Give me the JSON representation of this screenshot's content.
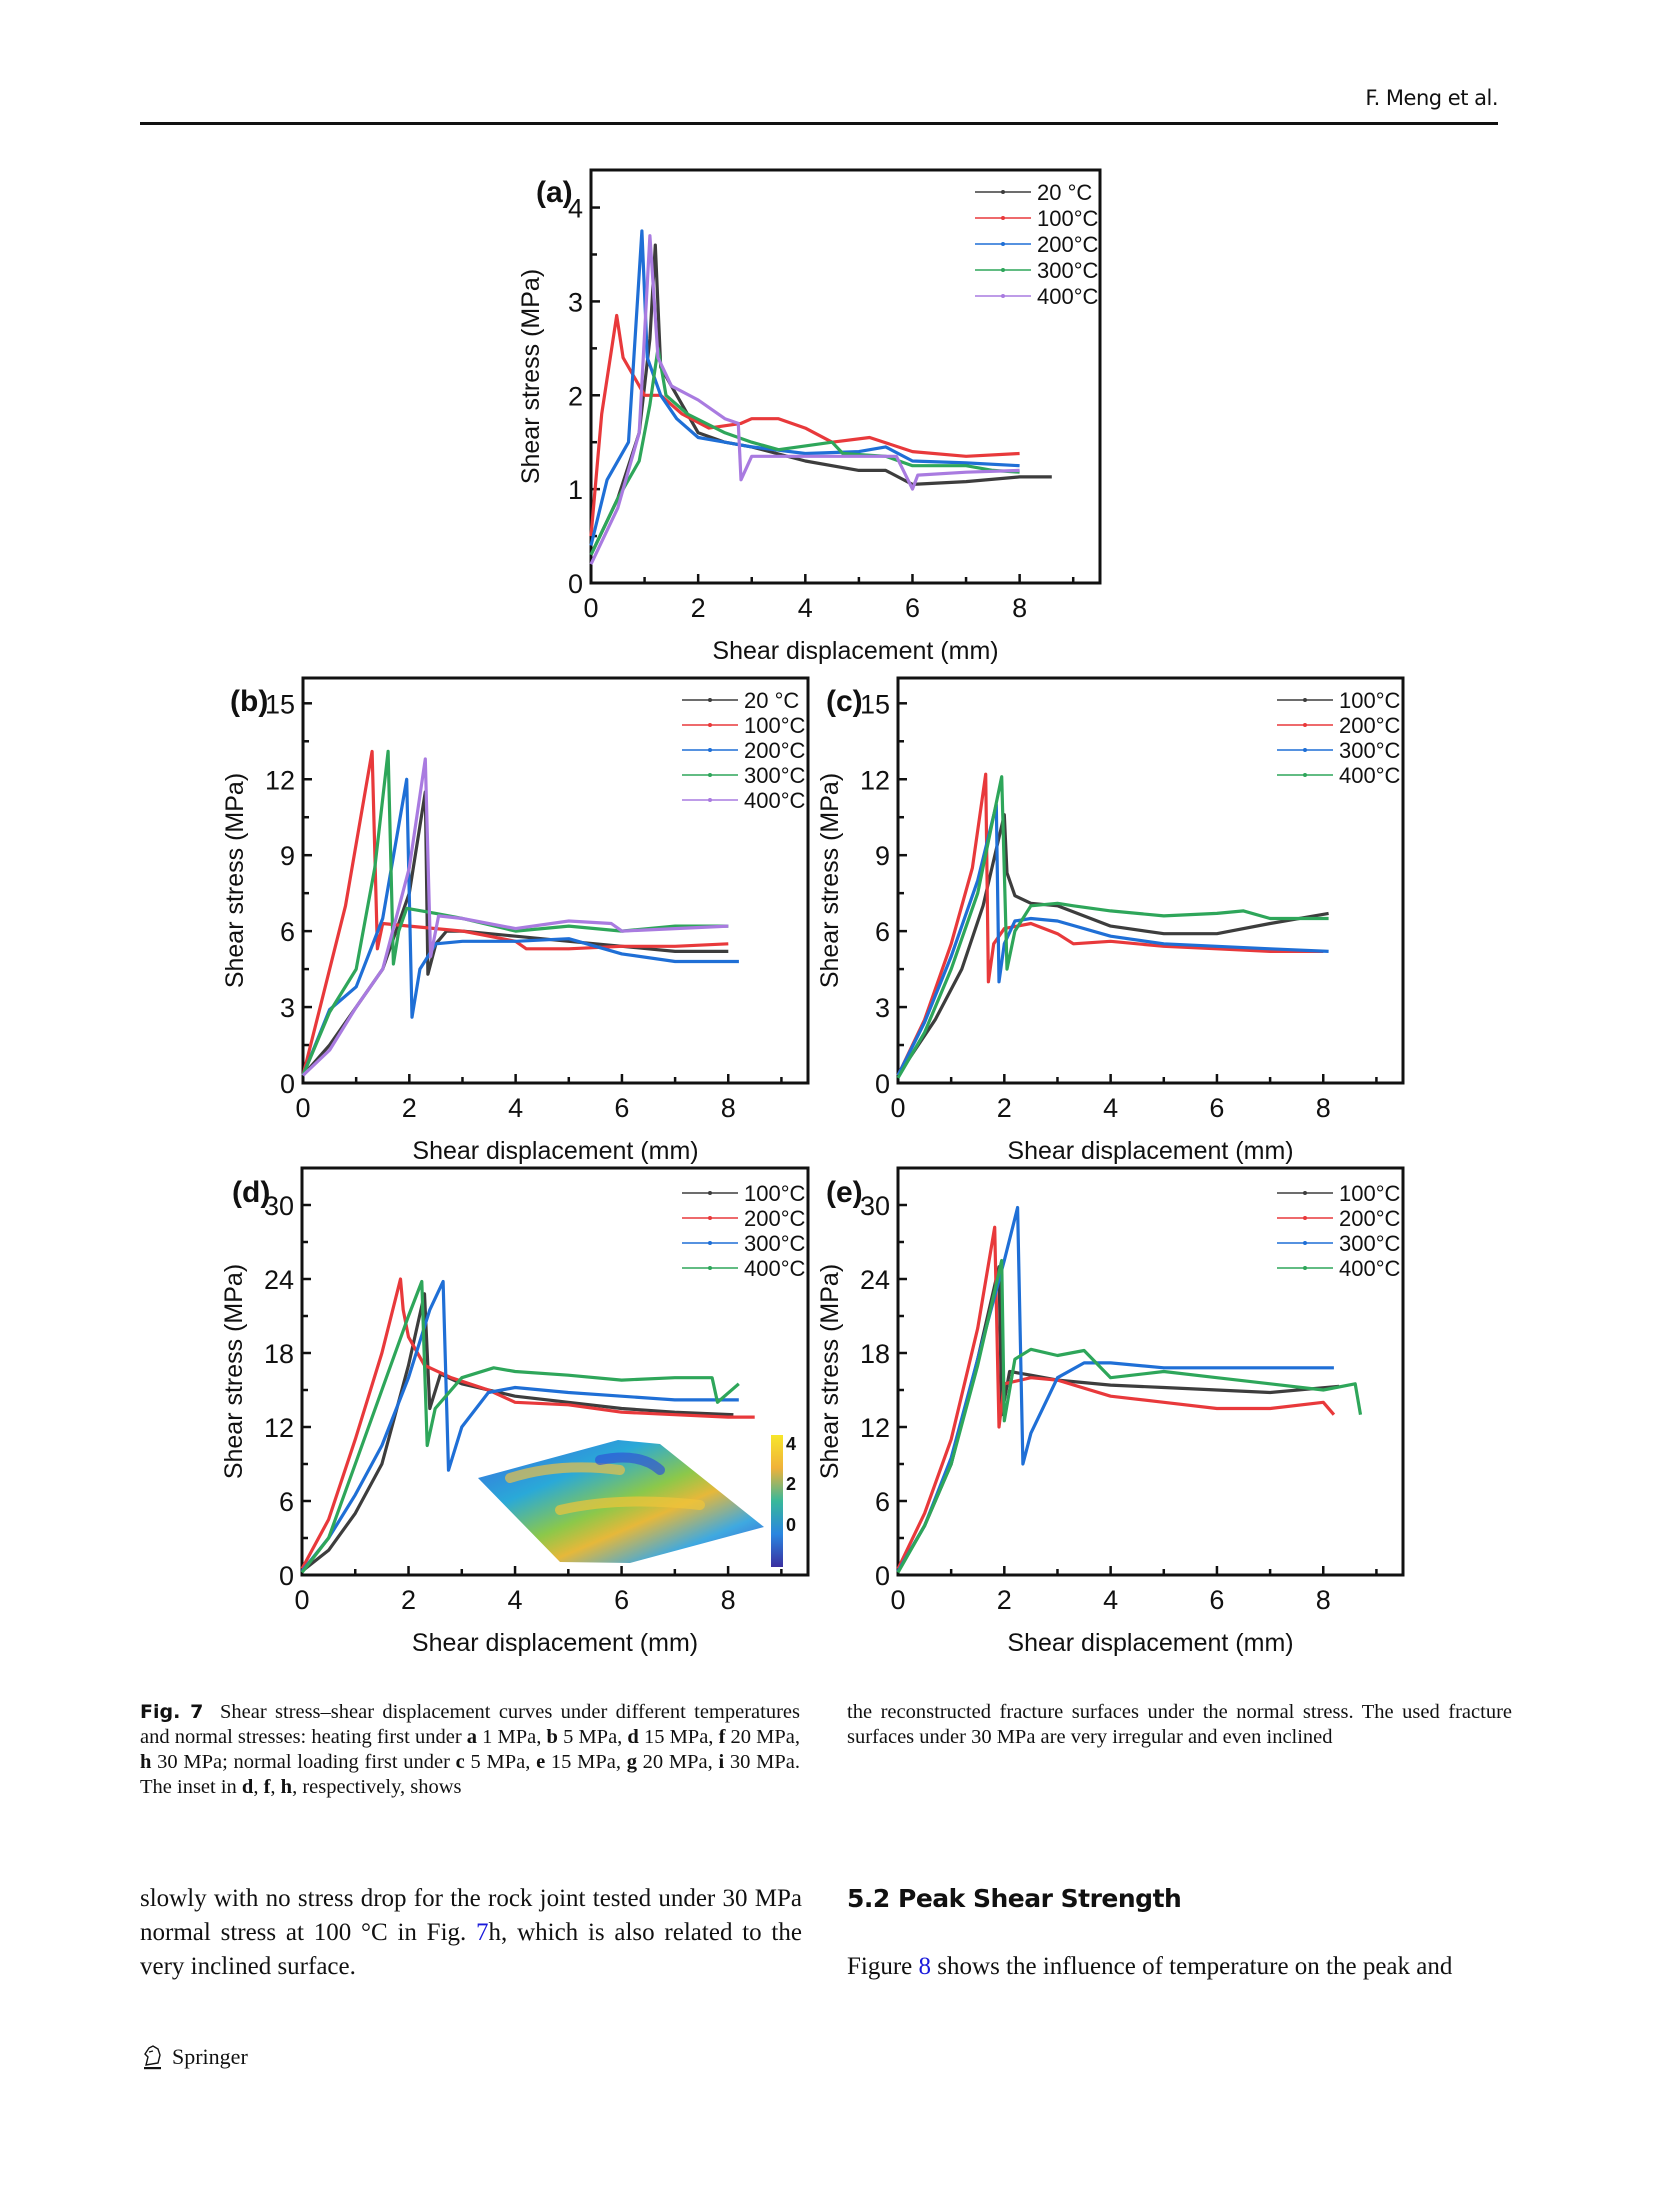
{
  "header": {
    "running_head": "F. Meng et al."
  },
  "figure": {
    "caption_label": "Fig. 7",
    "caption_left": [
      {
        "t": "Shear stress–shear displacement curves under different temper­atures and normal stresses: heating first under "
      },
      {
        "b": "a"
      },
      {
        "t": " 1 MPa, "
      },
      {
        "b": "b"
      },
      {
        "t": " 5 MPa, "
      },
      {
        "b": "d"
      },
      {
        "t": " 15 MPa, "
      },
      {
        "b": "f"
      },
      {
        "t": " 20 MPa, "
      },
      {
        "b": "h"
      },
      {
        "t": " 30 MPa; normal loading first under "
      },
      {
        "b": "c"
      },
      {
        "t": " 5 MPa, "
      },
      {
        "b": "e"
      },
      {
        "t": " 15 MPa, "
      },
      {
        "b": "g"
      },
      {
        "t": " 20 MPa, "
      },
      {
        "b": "i"
      },
      {
        "t": " 30 MPa. The inset in "
      },
      {
        "b": "d"
      },
      {
        "t": ", "
      },
      {
        "b": "f"
      },
      {
        "t": ", "
      },
      {
        "b": "h"
      },
      {
        "t": ", respectively, shows"
      }
    ],
    "caption_right": "the reconstructed fracture surfaces under the normal stress. The used fracture surfaces under 30 MPa are very irregular and even inclined",
    "inset": {
      "colorbar_ticks": [
        "4",
        "2",
        "0"
      ]
    }
  },
  "body": {
    "left_para": {
      "pre": "slowly with no stress drop for the rock joint tested under 30 MPa normal stress at 100 °C in Fig. ",
      "link": "7",
      "post": "h, which is also related to the very inclined surface."
    },
    "section_heading": "5.2  Peak Shear Strength",
    "right_para": {
      "pre": "Figure ",
      "link": "8",
      "post": " shows the influence of temperature on the peak and"
    }
  },
  "footer": {
    "publisher": "Springer"
  },
  "colors": {
    "20C": "#3d3d3d",
    "100C_a": "#e8393b",
    "200C_a": "#1f6fd6",
    "300C_a": "#2ea65a",
    "400C_a": "#a97be0"
  },
  "chart_data": [
    {
      "panel": "(a)",
      "type": "line",
      "xlabel": "Shear displacement (mm)",
      "ylabel": "Shear stress (MPa)",
      "xlim": [
        0,
        9.5
      ],
      "ylim": [
        0,
        4.4
      ],
      "xticks": [
        0,
        2,
        4,
        6,
        8
      ],
      "yticks": [
        0,
        1,
        2,
        3,
        4
      ],
      "legend": "top-right",
      "series": [
        {
          "name": "20 °C",
          "color": "#3d3d3d",
          "x": [
            0,
            0.5,
            0.9,
            1.1,
            1.2,
            1.3,
            1.5,
            2,
            2.5,
            3,
            4,
            5,
            5.5,
            6,
            7,
            8,
            8.6
          ],
          "y": [
            0.3,
            0.9,
            1.6,
            2.6,
            3.6,
            2.3,
            2.1,
            1.6,
            1.5,
            1.45,
            1.3,
            1.2,
            1.2,
            1.05,
            1.08,
            1.13,
            1.13
          ]
        },
        {
          "name": "100°C",
          "color": "#e8393b",
          "x": [
            0,
            0.2,
            0.48,
            0.6,
            0.8,
            1.0,
            1.3,
            1.7,
            2.2,
            2.8,
            3.0,
            3.5,
            4.0,
            4.5,
            5.2,
            6,
            7,
            8
          ],
          "y": [
            0.5,
            1.8,
            2.85,
            2.4,
            2.2,
            2.0,
            2.0,
            1.8,
            1.65,
            1.7,
            1.75,
            1.75,
            1.65,
            1.5,
            1.55,
            1.4,
            1.35,
            1.38
          ]
        },
        {
          "name": "200°C",
          "color": "#1f6fd6",
          "x": [
            0,
            0.3,
            0.7,
            0.95,
            1.05,
            1.3,
            1.6,
            2,
            2.5,
            3,
            4,
            5,
            5.5,
            6,
            7,
            8
          ],
          "y": [
            0.4,
            1.1,
            1.5,
            3.75,
            2.4,
            2.0,
            1.75,
            1.55,
            1.5,
            1.45,
            1.38,
            1.4,
            1.45,
            1.3,
            1.28,
            1.25
          ]
        },
        {
          "name": "300°C",
          "color": "#2ea65a",
          "x": [
            0,
            0.5,
            0.9,
            1.1,
            1.25,
            1.4,
            1.8,
            2.5,
            3,
            3.5,
            4.5,
            4.7,
            5.5,
            6,
            7,
            7.5,
            8
          ],
          "y": [
            0.3,
            0.9,
            1.3,
            1.9,
            2.5,
            2.0,
            1.8,
            1.6,
            1.5,
            1.42,
            1.5,
            1.38,
            1.35,
            1.25,
            1.25,
            1.2,
            1.18
          ]
        },
        {
          "name": "400°C",
          "color": "#a97be0",
          "x": [
            0,
            0.5,
            0.9,
            1.1,
            1.25,
            1.5,
            2,
            2.5,
            2.75,
            2.8,
            3,
            4,
            5,
            5.7,
            6.0,
            6.1,
            7,
            8
          ],
          "y": [
            0.2,
            0.8,
            1.6,
            3.7,
            2.4,
            2.1,
            1.95,
            1.75,
            1.7,
            1.1,
            1.35,
            1.35,
            1.35,
            1.35,
            1.0,
            1.15,
            1.18,
            1.2
          ]
        }
      ]
    },
    {
      "panel": "(b)",
      "type": "line",
      "xlabel": "Shear displacement (mm)",
      "ylabel": "Shear stress (MPa)",
      "xlim": [
        0,
        9.5
      ],
      "ylim": [
        0,
        16
      ],
      "xticks": [
        0,
        2,
        4,
        6,
        8
      ],
      "yticks": [
        0,
        3,
        6,
        9,
        12,
        15
      ],
      "legend": "top-right",
      "series": [
        {
          "name": "20 °C",
          "color": "#3d3d3d",
          "x": [
            0,
            0.5,
            1.0,
            1.5,
            2.0,
            2.3,
            2.35,
            2.5,
            2.7,
            3,
            4,
            5,
            6,
            7,
            8
          ],
          "y": [
            0.3,
            1.5,
            3.0,
            4.5,
            7.5,
            11.5,
            4.3,
            5.5,
            6.0,
            6.0,
            5.8,
            5.6,
            5.4,
            5.2,
            5.2
          ]
        },
        {
          "name": "100°C",
          "color": "#e8393b",
          "x": [
            0,
            0.3,
            0.8,
            1.3,
            1.4,
            1.5,
            2,
            3,
            4,
            4.2,
            5,
            6,
            7,
            8
          ],
          "y": [
            0.3,
            2.8,
            7.0,
            13.1,
            5.3,
            6.3,
            6.2,
            6.0,
            5.6,
            5.3,
            5.3,
            5.4,
            5.4,
            5.5
          ]
        },
        {
          "name": "200°C",
          "color": "#1f6fd6",
          "x": [
            0,
            0.5,
            1.0,
            1.5,
            1.95,
            2.05,
            2.2,
            2.5,
            3,
            4,
            5,
            6,
            7,
            8,
            8.2
          ],
          "y": [
            0.3,
            2.9,
            3.8,
            6.5,
            12.0,
            2.6,
            4.5,
            5.5,
            5.6,
            5.6,
            5.7,
            5.1,
            4.8,
            4.8,
            4.8
          ]
        },
        {
          "name": "300°C",
          "color": "#2ea65a",
          "x": [
            0,
            0.5,
            1.0,
            1.35,
            1.6,
            1.7,
            1.8,
            1.95,
            2.5,
            3,
            4,
            5,
            6,
            7,
            8
          ],
          "y": [
            0.3,
            2.8,
            4.5,
            8.5,
            13.1,
            4.7,
            6.0,
            6.9,
            6.7,
            6.5,
            6.0,
            6.2,
            6.0,
            6.2,
            6.2
          ]
        },
        {
          "name": "400°C",
          "color": "#a97be0",
          "x": [
            0,
            0.5,
            1.0,
            1.5,
            2.0,
            2.3,
            2.4,
            2.55,
            3,
            4,
            5,
            5.8,
            6,
            7,
            8
          ],
          "y": [
            0.3,
            1.3,
            3.0,
            4.5,
            8.5,
            12.8,
            5.0,
            6.6,
            6.5,
            6.1,
            6.4,
            6.3,
            6.0,
            6.1,
            6.2
          ]
        }
      ]
    },
    {
      "panel": "(c)",
      "type": "line",
      "xlabel": "Shear displacement (mm)",
      "ylabel": "Shear stress (MPa)",
      "xlim": [
        0,
        9.5
      ],
      "ylim": [
        0,
        16
      ],
      "xticks": [
        0,
        2,
        4,
        6,
        8
      ],
      "yticks": [
        0,
        3,
        6,
        9,
        12,
        15
      ],
      "legend": "top-right",
      "series": [
        {
          "name": "100°C",
          "color": "#3d3d3d",
          "x": [
            0,
            0.7,
            1.2,
            1.6,
            2.0,
            2.05,
            2.2,
            2.5,
            3,
            4,
            5,
            6,
            7,
            8.1
          ],
          "y": [
            0.3,
            2.5,
            4.5,
            7.0,
            10.6,
            8.3,
            7.4,
            7.1,
            7.0,
            6.2,
            5.9,
            5.9,
            6.3,
            6.7
          ]
        },
        {
          "name": "200°C",
          "color": "#e8393b",
          "x": [
            0,
            0.5,
            1.0,
            1.4,
            1.65,
            1.7,
            1.8,
            2.0,
            2.5,
            3,
            3.3,
            4,
            5,
            6,
            7,
            8
          ],
          "y": [
            0.3,
            2.5,
            5.5,
            8.5,
            12.2,
            4.0,
            5.5,
            6.1,
            6.3,
            5.9,
            5.5,
            5.6,
            5.4,
            5.3,
            5.2,
            5.2
          ]
        },
        {
          "name": "300°C",
          "color": "#1f6fd6",
          "x": [
            0,
            0.5,
            1.0,
            1.5,
            1.85,
            1.9,
            2.0,
            2.2,
            2.5,
            3,
            4,
            5,
            6,
            7,
            8.1
          ],
          "y": [
            0.3,
            2.4,
            5.0,
            8.0,
            11.0,
            4.0,
            5.5,
            6.4,
            6.5,
            6.4,
            5.8,
            5.5,
            5.4,
            5.3,
            5.2
          ]
        },
        {
          "name": "400°C",
          "color": "#2ea65a",
          "x": [
            0,
            0.5,
            1.0,
            1.5,
            1.95,
            2.05,
            2.2,
            2.5,
            3,
            3.3,
            4,
            5,
            6,
            6.5,
            7,
            8.1
          ],
          "y": [
            0.2,
            2.0,
            4.5,
            7.5,
            12.1,
            4.5,
            6.0,
            7.0,
            7.1,
            7.0,
            6.8,
            6.6,
            6.7,
            6.8,
            6.5,
            6.5
          ]
        }
      ]
    },
    {
      "panel": "(d)",
      "type": "line",
      "xlabel": "Shear displacement (mm)",
      "ylabel": "Shear stress (MPa)",
      "xlim": [
        0,
        9.5
      ],
      "ylim": [
        0,
        33
      ],
      "xticks": [
        0,
        2,
        4,
        6,
        8
      ],
      "yticks": [
        0,
        6,
        12,
        18,
        24,
        30
      ],
      "legend": "top-right",
      "inset": "reconstructed fracture surface with colorbar (0–4)",
      "series": [
        {
          "name": "100°C",
          "color": "#3d3d3d",
          "x": [
            0,
            0.5,
            1.0,
            1.5,
            2.0,
            2.3,
            2.4,
            2.6,
            3,
            4,
            5,
            6,
            7,
            8.1
          ],
          "y": [
            0.3,
            2.0,
            5.0,
            9.0,
            17.0,
            22.8,
            13.5,
            16.3,
            15.5,
            14.5,
            14.0,
            13.5,
            13.2,
            13.0
          ]
        },
        {
          "name": "200°C",
          "color": "#e8393b",
          "x": [
            0,
            0.5,
            1.0,
            1.5,
            1.85,
            1.9,
            2.0,
            2.3,
            2.8,
            3.5,
            4,
            5,
            6,
            7,
            8,
            8.5
          ],
          "y": [
            0.5,
            4.5,
            11.0,
            18.0,
            24.0,
            21.5,
            19.3,
            17.0,
            16.0,
            15.0,
            14.0,
            13.8,
            13.2,
            13.0,
            12.8,
            12.8
          ]
        },
        {
          "name": "300°C",
          "color": "#1f6fd6",
          "x": [
            0,
            0.5,
            1.0,
            1.5,
            2.0,
            2.4,
            2.65,
            2.75,
            3.0,
            3.5,
            4,
            5,
            6,
            7,
            8.2
          ],
          "y": [
            0.3,
            3.0,
            6.5,
            10.5,
            16.0,
            21.5,
            23.8,
            8.5,
            12.0,
            14.8,
            15.2,
            14.8,
            14.5,
            14.2,
            14.2
          ]
        },
        {
          "name": "400°C",
          "color": "#2ea65a",
          "x": [
            0,
            0.5,
            1.0,
            1.5,
            2.0,
            2.25,
            2.35,
            2.5,
            3.0,
            3.6,
            4,
            5,
            6,
            7,
            7.7,
            7.8,
            8.2
          ],
          "y": [
            0.2,
            3.0,
            9.0,
            15.0,
            21.0,
            23.8,
            10.5,
            13.5,
            16.0,
            16.8,
            16.5,
            16.2,
            15.8,
            16.0,
            16.0,
            14.0,
            15.5
          ]
        }
      ]
    },
    {
      "panel": "(e)",
      "type": "line",
      "xlabel": "Shear displacement (mm)",
      "ylabel": "Shear stress (MPa)",
      "xlim": [
        0,
        9.5
      ],
      "ylim": [
        0,
        33
      ],
      "xticks": [
        0,
        2,
        4,
        6,
        8
      ],
      "yticks": [
        0,
        6,
        12,
        18,
        24,
        30
      ],
      "legend": "top-right",
      "series": [
        {
          "name": "100°C",
          "color": "#3d3d3d",
          "x": [
            0,
            0.5,
            1.0,
            1.5,
            1.9,
            1.95,
            2.1,
            2.5,
            3,
            4,
            5,
            6,
            7,
            8.3
          ],
          "y": [
            0.3,
            4.0,
            9.0,
            17.5,
            25.0,
            13.0,
            16.5,
            16.2,
            15.8,
            15.4,
            15.2,
            15.0,
            14.8,
            15.3
          ]
        },
        {
          "name": "200°C",
          "color": "#e8393b",
          "x": [
            0,
            0.5,
            1.0,
            1.5,
            1.82,
            1.9,
            2.0,
            2.5,
            3,
            4,
            5,
            6,
            7,
            8,
            8.2
          ],
          "y": [
            0.5,
            5.0,
            11.0,
            20.0,
            28.2,
            12.0,
            15.5,
            16.0,
            15.8,
            14.5,
            14.0,
            13.5,
            13.5,
            14.0,
            13.0
          ]
        },
        {
          "name": "300°C",
          "color": "#1f6fd6",
          "x": [
            0,
            0.5,
            1.0,
            1.5,
            2.0,
            2.25,
            2.35,
            2.5,
            3.0,
            3.5,
            4,
            5,
            6,
            7,
            8,
            8.2
          ],
          "y": [
            0.3,
            4.0,
            9.5,
            17.5,
            25.5,
            29.8,
            9.0,
            11.5,
            16.0,
            17.2,
            17.2,
            16.8,
            16.8,
            16.8,
            16.8,
            16.8
          ]
        },
        {
          "name": "400°C",
          "color": "#2ea65a",
          "x": [
            0,
            0.5,
            1.0,
            1.5,
            1.95,
            2.0,
            2.2,
            2.5,
            3,
            3.5,
            4,
            5,
            6,
            7,
            8,
            8.6,
            8.7
          ],
          "y": [
            0.2,
            4.0,
            9.0,
            17.0,
            25.5,
            12.5,
            17.5,
            18.3,
            17.8,
            18.2,
            16.0,
            16.5,
            16.0,
            15.5,
            15.0,
            15.5,
            13.0
          ]
        }
      ]
    }
  ]
}
